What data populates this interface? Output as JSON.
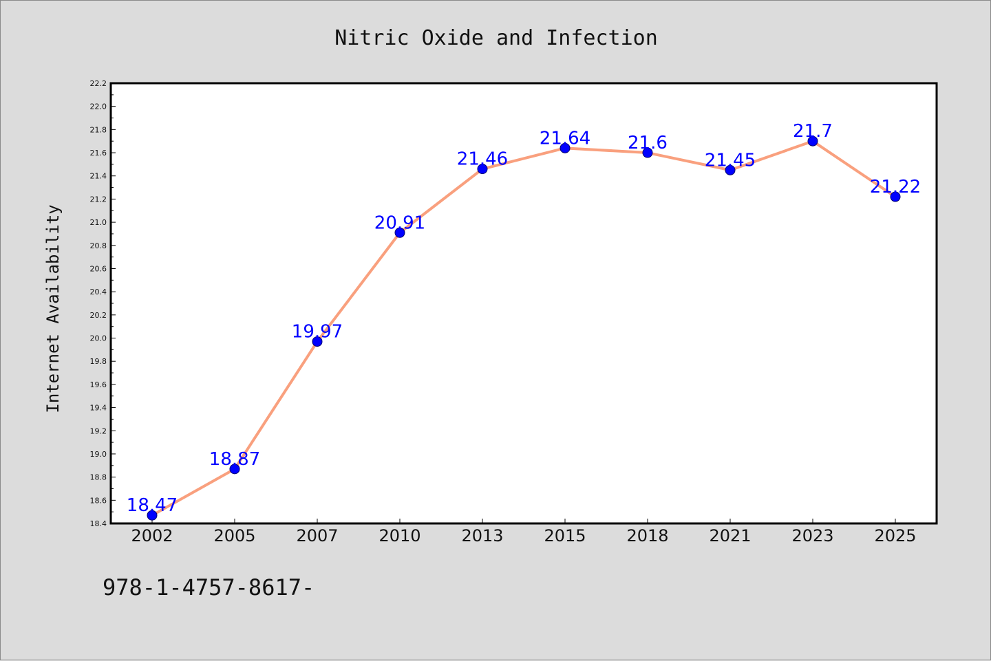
{
  "chart_data": {
    "type": "line",
    "title": "Nitric Oxide and Infection",
    "xlabel": "",
    "ylabel": "Internet Availability",
    "categories": [
      "2002",
      "2005",
      "2007",
      "2010",
      "2013",
      "2015",
      "2018",
      "2021",
      "2023",
      "2025"
    ],
    "series": [
      {
        "values": [
          18.47,
          18.87,
          19.97,
          20.91,
          21.46,
          21.64,
          21.6,
          21.45,
          21.7,
          21.22
        ],
        "labels": [
          "18.47",
          "18.87",
          "19.97",
          "20.91",
          "21.46",
          "21.64",
          "21.6",
          "21.45",
          "21.7",
          "21.22"
        ],
        "line_color": "#f9a07e",
        "marker_color": "#0000ff"
      }
    ],
    "ylim": [
      18.4,
      22.2
    ],
    "yticks": [
      "18.4",
      "18.6",
      "18.8",
      "19.0",
      "19.2",
      "19.4",
      "19.6",
      "19.8",
      "20.0",
      "20.2",
      "20.4",
      "20.6",
      "20.8",
      "21.0",
      "21.2",
      "21.4",
      "21.6",
      "21.8",
      "22.0",
      "22.2"
    ],
    "grid": false,
    "legend": "none",
    "plot_background": "#ffffff",
    "figure_background": "#dcdcdc",
    "footer_text": "978-1-4757-8617-"
  }
}
